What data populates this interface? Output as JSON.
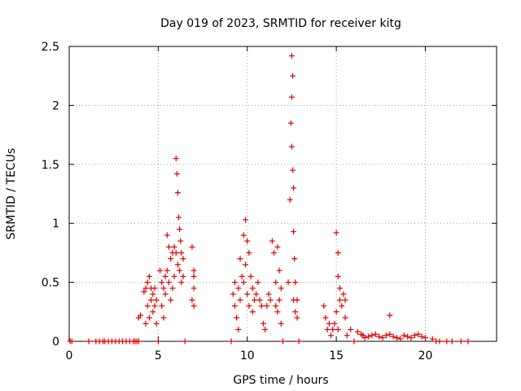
{
  "chart_data": {
    "type": "scatter",
    "title": "Day 019 of 2023, SRMTID for receiver kitg",
    "xlabel": "GPS time / hours",
    "ylabel": "SRMTID / TECUs",
    "xlim": [
      0,
      24
    ],
    "ylim": [
      0,
      2.5
    ],
    "xticks": [
      0,
      5,
      10,
      15,
      20
    ],
    "xtick_labels": [
      "0",
      "5",
      "10",
      "15",
      "20"
    ],
    "yticks": [
      0,
      0.5,
      1,
      1.5,
      2,
      2.5
    ],
    "ytick_labels": [
      "0",
      "0.5",
      "1",
      "1.5",
      "2",
      "2.5"
    ],
    "grid": true,
    "marker": "+",
    "color": "#e00000",
    "series": [
      {
        "name": "SRMTID",
        "x": [
          0.05,
          0.15,
          1.1,
          1.5,
          1.7,
          1.9,
          2.0,
          2.2,
          2.4,
          2.6,
          2.8,
          3.0,
          3.2,
          3.4,
          3.6,
          3.7,
          3.8,
          3.9,
          3.9,
          4.0,
          4.2,
          4.3,
          4.3,
          4.4,
          4.4,
          4.5,
          4.5,
          4.6,
          4.6,
          4.7,
          4.7,
          4.8,
          4.8,
          4.9,
          4.9,
          5.0,
          5.1,
          5.2,
          5.2,
          5.3,
          5.3,
          5.4,
          5.4,
          5.5,
          5.5,
          5.6,
          5.6,
          5.7,
          5.7,
          5.8,
          5.8,
          5.9,
          5.9,
          6.0,
          6.0,
          6.05,
          6.1,
          6.1,
          6.15,
          6.2,
          6.2,
          6.25,
          6.3,
          6.3,
          6.4,
          6.4,
          6.5,
          6.9,
          6.9,
          7.0,
          7.0,
          7.0,
          7.0,
          9.1,
          9.2,
          9.3,
          9.3,
          9.4,
          9.5,
          9.5,
          9.6,
          9.6,
          9.7,
          9.8,
          9.8,
          9.9,
          9.9,
          10.0,
          10.0,
          10.1,
          10.1,
          10.2,
          10.3,
          10.3,
          10.4,
          10.5,
          10.6,
          10.7,
          10.8,
          10.9,
          11.0,
          11.1,
          11.2,
          11.3,
          11.4,
          11.5,
          11.6,
          11.6,
          11.7,
          11.7,
          11.8,
          11.8,
          11.9,
          11.9,
          12.0,
          12.3,
          12.4,
          12.45,
          12.5,
          12.5,
          12.5,
          12.55,
          12.55,
          12.6,
          12.6,
          12.6,
          12.65,
          12.7,
          12.7,
          12.8,
          12.8,
          12.9,
          14.3,
          14.4,
          14.5,
          14.6,
          14.7,
          14.8,
          14.9,
          15.0,
          15.0,
          15.1,
          15.1,
          15.1,
          15.2,
          15.2,
          15.3,
          15.4,
          15.5,
          15.5,
          15.6,
          15.8,
          16.0,
          16.2,
          16.4,
          16.5,
          16.6,
          16.8,
          17.0,
          17.2,
          17.4,
          17.6,
          17.8,
          18.0,
          18.2,
          18.4,
          18.6,
          18.8,
          19.0,
          19.2,
          19.4,
          19.6,
          19.8,
          20.0,
          18.0,
          20.4,
          20.6,
          20.8,
          21.2,
          21.5,
          22.0,
          22.4
        ],
        "y": [
          0.0,
          0.0,
          0.0,
          0.0,
          0.0,
          0.0,
          0.0,
          0.0,
          0.0,
          0.0,
          0.0,
          0.0,
          0.0,
          0.0,
          0.0,
          0.0,
          0.0,
          0.0,
          0.2,
          0.22,
          0.42,
          0.45,
          0.15,
          0.5,
          0.3,
          0.55,
          0.2,
          0.45,
          0.35,
          0.4,
          0.25,
          0.45,
          0.3,
          0.35,
          0.15,
          0.0,
          0.6,
          0.5,
          0.3,
          0.45,
          0.2,
          0.55,
          0.4,
          0.9,
          0.6,
          0.8,
          0.5,
          0.7,
          0.35,
          0.75,
          0.45,
          0.8,
          0.55,
          1.55,
          0.75,
          1.42,
          1.26,
          0.65,
          1.05,
          0.95,
          0.6,
          0.85,
          0.75,
          0.5,
          0.7,
          0.55,
          0.0,
          0.8,
          0.35,
          0.6,
          0.45,
          0.55,
          0.3,
          0.0,
          0.4,
          0.5,
          0.3,
          0.2,
          0.45,
          0.1,
          0.7,
          0.35,
          0.55,
          0.9,
          0.5,
          1.03,
          0.65,
          0.85,
          0.4,
          0.75,
          0.3,
          0.55,
          0.45,
          0.25,
          0.35,
          0.4,
          0.5,
          0.35,
          0.3,
          0.15,
          0.1,
          0.3,
          0.4,
          0.35,
          0.85,
          0.75,
          0.5,
          0.3,
          0.8,
          0.25,
          0.6,
          0.35,
          0.45,
          0.15,
          0.0,
          0.5,
          1.2,
          1.85,
          2.42,
          2.07,
          1.65,
          2.25,
          1.45,
          1.3,
          0.93,
          0.35,
          0.7,
          0.5,
          0.25,
          0.35,
          0.2,
          0.0,
          0.3,
          0.2,
          0.1,
          0.15,
          0.05,
          0.1,
          0.15,
          0.25,
          0.92,
          0.55,
          0.75,
          0.1,
          0.35,
          0.45,
          0.3,
          0.4,
          0.2,
          0.35,
          0.05,
          0.1,
          0.0,
          0.08,
          0.06,
          0.05,
          0.03,
          0.04,
          0.05,
          0.06,
          0.04,
          0.03,
          0.05,
          0.06,
          0.04,
          0.03,
          0.02,
          0.05,
          0.04,
          0.03,
          0.05,
          0.06,
          0.04,
          0.03,
          0.22,
          0.02,
          0.0,
          0.0,
          0.0,
          0.0,
          0.0,
          0.0
        ]
      }
    ]
  }
}
